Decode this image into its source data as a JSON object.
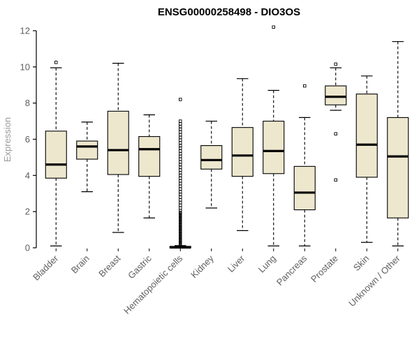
{
  "page": {
    "background": "#ffffff"
  },
  "chart_data": {
    "type": "boxplot",
    "title": "ENSG00000258498 - DIO3OS",
    "ylabel": "Expression",
    "xlabel": "",
    "ylim": [
      0,
      12
    ],
    "yticks": [
      0,
      2,
      4,
      6,
      8,
      10,
      12
    ],
    "grid": false,
    "legend": "none",
    "colors": {
      "box_fill": "#EDE7CE",
      "axis": "#000000",
      "tick_text": "#5f5f5f",
      "ylabel_text": "#9a9a9a"
    },
    "categories": [
      "Bladder",
      "Brain",
      "Breast",
      "Gastric",
      "Hematopoietic cells",
      "Kidney",
      "Liver",
      "Lung",
      "Pancreas",
      "Prostate",
      "Skin",
      "Unknown / Other"
    ],
    "series": [
      {
        "category": "Bladder",
        "whislo": 0.1,
        "q1": 3.85,
        "med": 4.6,
        "q3": 6.45,
        "whishi": 9.95,
        "outliers": [
          10.25
        ]
      },
      {
        "category": "Brain",
        "whislo": 3.1,
        "q1": 4.9,
        "med": 5.6,
        "q3": 5.9,
        "whishi": 6.95,
        "outliers": []
      },
      {
        "category": "Breast",
        "whislo": 0.85,
        "q1": 4.05,
        "med": 5.4,
        "q3": 7.55,
        "whishi": 10.2,
        "outliers": []
      },
      {
        "category": "Gastric",
        "whislo": 1.65,
        "q1": 3.95,
        "med": 5.45,
        "q3": 6.15,
        "whishi": 7.35,
        "outliers": []
      },
      {
        "category": "Hematopoietic cells",
        "whislo": 0,
        "q1": 0,
        "med": 0.02,
        "q3": 0.08,
        "whishi": 0.12,
        "outliers": [
          8.2,
          7.0,
          6.85,
          6.7,
          6.55,
          6.4,
          6.25,
          6.1,
          5.95,
          5.8,
          5.65,
          5.5,
          5.35,
          5.2,
          5.05,
          4.9,
          4.75,
          4.6,
          4.45,
          4.3,
          4.15,
          4.0,
          3.85,
          3.7,
          3.55,
          3.4,
          3.25,
          3.1,
          2.95,
          2.8,
          2.65,
          2.5,
          2.35,
          2.2,
          2.05,
          1.95,
          1.9,
          1.85,
          1.8,
          1.75,
          1.7,
          1.65,
          1.6,
          1.55,
          1.5,
          1.45,
          1.4,
          1.35,
          1.3,
          1.25,
          1.2,
          1.15,
          1.1,
          1.05,
          1.0,
          0.95,
          0.9,
          0.85,
          0.8,
          0.75,
          0.7,
          0.65,
          0.6,
          0.55,
          0.5,
          0.45,
          0.4,
          0.35,
          0.3,
          0.25,
          0.2,
          0.15
        ]
      },
      {
        "category": "Kidney",
        "whislo": 2.2,
        "q1": 4.35,
        "med": 4.85,
        "q3": 5.65,
        "whishi": 7.0,
        "outliers": []
      },
      {
        "category": "Liver",
        "whislo": 0.95,
        "q1": 3.95,
        "med": 5.1,
        "q3": 6.65,
        "whishi": 9.35,
        "outliers": []
      },
      {
        "category": "Lung",
        "whislo": 0.1,
        "q1": 4.1,
        "med": 5.35,
        "q3": 7.0,
        "whishi": 8.7,
        "outliers": [
          12.2
        ]
      },
      {
        "category": "Pancreas",
        "whislo": 0.1,
        "q1": 2.1,
        "med": 3.05,
        "q3": 4.5,
        "whishi": 7.2,
        "outliers": [
          8.95
        ]
      },
      {
        "category": "Prostate",
        "whislo": 7.6,
        "q1": 7.9,
        "med": 8.35,
        "q3": 8.95,
        "whishi": 9.95,
        "outliers": [
          10.15,
          6.3,
          3.75
        ]
      },
      {
        "category": "Skin",
        "whislo": 0.3,
        "q1": 3.9,
        "med": 5.7,
        "q3": 8.5,
        "whishi": 9.5,
        "outliers": []
      },
      {
        "category": "Unknown / Other",
        "whislo": 0.1,
        "q1": 1.65,
        "med": 5.05,
        "q3": 7.2,
        "whishi": 11.4,
        "outliers": []
      }
    ]
  }
}
